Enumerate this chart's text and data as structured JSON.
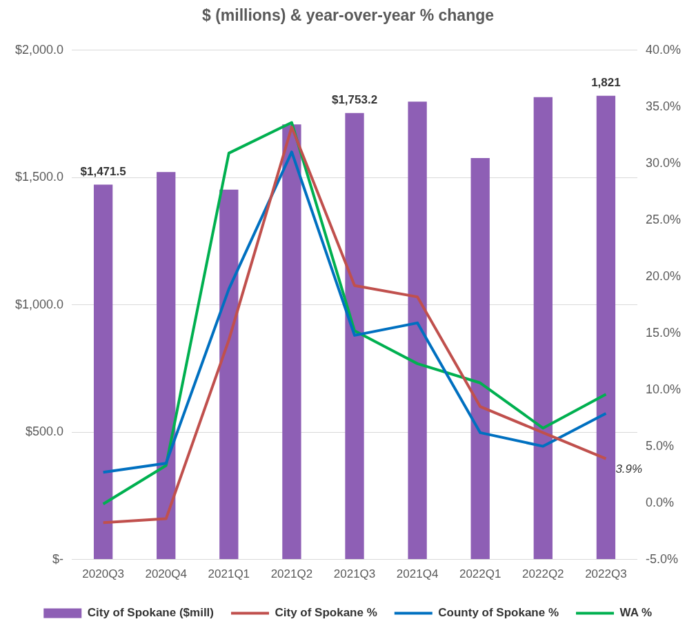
{
  "chart_data": {
    "type": "bar",
    "title": "$ (millions) & year-over-year % change",
    "categories": [
      "2020Q3",
      "2020Q4",
      "2021Q1",
      "2021Q2",
      "2021Q3",
      "2021Q4",
      "2022Q1",
      "2022Q2",
      "2022Q3"
    ],
    "series": [
      {
        "name": "City of Spokane ($mill)",
        "color": "#8e5fb5",
        "values": [
          1471.5,
          1521,
          1452,
          1708,
          1753.2,
          1798,
          1576,
          1815,
          1821
        ],
        "value_labels": [
          "$1,471.5",
          null,
          null,
          null,
          "$1,753.2",
          null,
          null,
          null,
          "1,821"
        ]
      },
      {
        "name": "City of Spokane %",
        "type": "line",
        "axis": "y2",
        "color": "#c0504d",
        "values": [
          -1.75,
          -1.4,
          14.4,
          33.2,
          19.2,
          18.2,
          8.5,
          6.2,
          3.9
        ],
        "value_labels": [
          null,
          null,
          null,
          null,
          null,
          null,
          null,
          null,
          "3.9%"
        ]
      },
      {
        "name": "County of Spokane %",
        "type": "line",
        "axis": "y2",
        "color": "#0070c0",
        "values": [
          2.7,
          3.5,
          18.9,
          31.0,
          14.8,
          15.9,
          6.2,
          5.0,
          7.9
        ]
      },
      {
        "name": "WA %",
        "type": "line",
        "axis": "y2",
        "color": "#00b050",
        "values": [
          -0.1,
          3.3,
          30.9,
          33.6,
          15.2,
          12.3,
          10.6,
          6.6,
          9.6
        ]
      }
    ],
    "ylim": [
      0,
      2000
    ],
    "yticks": [
      {
        "value": 0,
        "label": "$-"
      },
      {
        "value": 500,
        "label": "$500.0"
      },
      {
        "value": 1000,
        "label": "$1,000.0"
      },
      {
        "value": 1500,
        "label": "$1,500.0"
      },
      {
        "value": 2000,
        "label": "$2,000.0"
      }
    ],
    "y2lim": [
      -5,
      40
    ],
    "y2ticks": [
      {
        "value": -5,
        "label": "-5.0%"
      },
      {
        "value": 0,
        "label": "0.0%"
      },
      {
        "value": 5,
        "label": "5.0%"
      },
      {
        "value": 10,
        "label": "10.0%"
      },
      {
        "value": 15,
        "label": "15.0%"
      },
      {
        "value": 20,
        "label": "20.0%"
      },
      {
        "value": 25,
        "label": "25.0%"
      },
      {
        "value": 30,
        "label": "30.0%"
      },
      {
        "value": 35,
        "label": "35.0%"
      },
      {
        "value": 40,
        "label": "40.0%"
      }
    ],
    "grid": "y",
    "legend": "bottom",
    "marker": "none"
  }
}
